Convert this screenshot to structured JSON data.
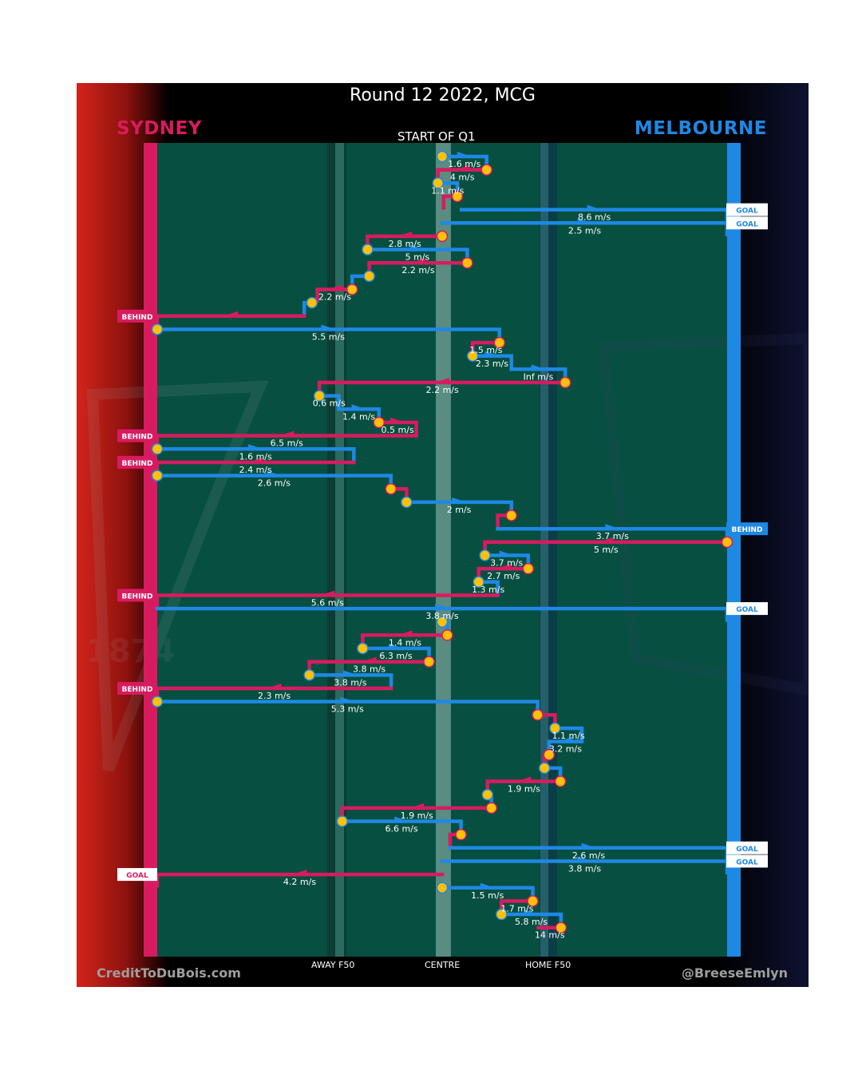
{
  "title": "Round 12 2022, MCG",
  "teams": {
    "home": "MELBOURNE",
    "away": "SYDNEY"
  },
  "period_label": "START OF Q1",
  "zones": {
    "away_f50": "AWAY F50",
    "centre": "CENTRE",
    "home_f50": "HOME F50"
  },
  "credits": {
    "left": "CreditToDuBois.com",
    "right": "@BreeseEmlyn"
  },
  "watermarks": {
    "left_year": "1874"
  },
  "colors": {
    "sydney": "#d81b60",
    "melbourne": "#1e88e5",
    "field": "#074f40",
    "marker": "#ffc107",
    "background": "#000000"
  },
  "chart_data": {
    "type": "line",
    "title": "Round 12 2022, MCG",
    "x_axis": {
      "ticks": [
        "AWAY F50",
        "CENTRE",
        "HOME F50"
      ],
      "range": [
        -100,
        100
      ],
      "note": "field position from Sydney end (left) to Melbourne end (right)"
    },
    "y_axis": {
      "direction": "time, top to bottom",
      "start": "START OF Q1"
    },
    "series": [
      {
        "name": "SYDNEY",
        "color": "#d81b60"
      },
      {
        "name": "MELBOURNE",
        "color": "#1e88e5"
      }
    ],
    "chains": [
      {
        "team": "melbourne",
        "start_x": 0,
        "end_x": 15.6,
        "label": "1.6 m/s",
        "outcome": "",
        "waypoints": [
          [
            0,
            16
          ],
          [
            15.6,
            16
          ],
          [
            15.6,
            32
          ]
        ]
      },
      {
        "team": "sydney",
        "start_x": 15.6,
        "end_x": -1.5,
        "label": "4 m/s",
        "outcome": "",
        "waypoints": [
          [
            -1.5,
            32
          ],
          [
            -1.5,
            48
          ]
        ]
      },
      {
        "team": "melbourne",
        "start_x": -1.5,
        "end_x": 5.3,
        "label": "1.1 m/s",
        "outcome": "",
        "waypoints": [
          [
            5.3,
            48
          ],
          [
            5.3,
            64
          ]
        ]
      },
      {
        "team": "sydney",
        "start_x": 5.3,
        "end_x": 0.5,
        "label": "",
        "outcome": "",
        "waypoints": [
          [
            0.5,
            64
          ],
          [
            0.5,
            82
          ],
          [
            6.8,
            82
          ],
          [
            6.8,
            98
          ]
        ]
      },
      {
        "team": "melbourne",
        "start_x": 6.8,
        "end_x": 100,
        "label": "8.6 m/s",
        "outcome": "GOAL",
        "waypoints": []
      },
      {
        "team": "melbourne",
        "start_x": 0,
        "end_x": 100,
        "label": "2.5 m/s",
        "outcome": "GOAL",
        "waypoints": []
      },
      {
        "team": "sydney",
        "start_x": 0,
        "end_x": -26.2,
        "label": "2.8 m/s",
        "outcome": "",
        "waypoints": [
          [
            -26.2,
            132
          ],
          [
            -26.2,
            148
          ]
        ]
      },
      {
        "team": "melbourne",
        "start_x": -26.2,
        "end_x": 8.8,
        "label": "5 m/s",
        "outcome": "",
        "waypoints": [
          [
            8.8,
            148
          ],
          [
            8.8,
            165
          ]
        ]
      },
      {
        "team": "sydney",
        "start_x": 8.8,
        "end_x": -25.6,
        "label": "2.2 m/s",
        "outcome": "",
        "waypoints": [
          [
            -25.6,
            165
          ],
          [
            -25.6,
            181
          ]
        ]
      },
      {
        "team": "melbourne",
        "start_x": -25.6,
        "end_x": -31.6,
        "label": "",
        "outcome": "",
        "waypoints": [
          [
            -31.6,
            181
          ],
          [
            -31.6,
            198
          ]
        ]
      },
      {
        "team": "sydney",
        "start_x": -31.6,
        "end_x": -43.8,
        "label": "2.2 m/s",
        "outcome": "",
        "waypoints": [
          [
            -43.8,
            198
          ],
          [
            -43.8,
            214
          ],
          [
            -45.7,
            214
          ],
          [
            -45.7,
            230
          ]
        ]
      },
      {
        "team": "melbourne",
        "start_x": -45.7,
        "end_x": -48.4,
        "label": "",
        "outcome": "",
        "waypoints": [
          [
            -48.4,
            230
          ],
          [
            -48.4,
            247
          ]
        ]
      },
      {
        "team": "sydney",
        "start_x": -48.4,
        "end_x": -100,
        "label": "",
        "outcome": "BEHIND",
        "waypoints": []
      },
      {
        "team": "melbourne",
        "start_x": -100,
        "end_x": 20.1,
        "label": "5.5 m/s",
        "outcome": "",
        "waypoints": [
          [
            20.1,
            264
          ],
          [
            20.1,
            281
          ]
        ]
      },
      {
        "team": "sydney",
        "start_x": 20.1,
        "end_x": 10.7,
        "label": "1.5 m/s",
        "outcome": "",
        "waypoints": [
          [
            10.7,
            281
          ],
          [
            10.7,
            297
          ]
        ]
      },
      {
        "team": "melbourne",
        "start_x": 10.7,
        "end_x": 24.3,
        "label": "2.3 m/s",
        "outcome": "",
        "waypoints": [
          [
            24.3,
            297
          ],
          [
            24.3,
            314
          ]
        ]
      },
      {
        "team": "melbourne",
        "start_x": 24.3,
        "end_x": 43.2,
        "label": "Inf m/s",
        "outcome": "",
        "waypoints": [
          [
            43.2,
            314
          ],
          [
            43.2,
            330
          ]
        ]
      },
      {
        "team": "sydney",
        "start_x": 43.2,
        "end_x": -43.1,
        "label": "2.2 m/s",
        "outcome": "",
        "waypoints": [
          [
            -43.1,
            330
          ],
          [
            -43.1,
            347
          ]
        ]
      },
      {
        "team": "melbourne",
        "start_x": -43.1,
        "end_x": -36.3,
        "label": "0.6 m/s",
        "outcome": "",
        "waypoints": [
          [
            -36.3,
            347
          ],
          [
            -36.3,
            363
          ]
        ]
      },
      {
        "team": "melbourne",
        "start_x": -36.3,
        "end_x": -22.2,
        "label": "1.4 m/s",
        "outcome": "",
        "waypoints": [
          [
            -22.2,
            363
          ],
          [
            -22.2,
            380
          ]
        ]
      },
      {
        "team": "sydney",
        "start_x": -22.2,
        "end_x": -9.1,
        "label": "0.5 m/s",
        "outcome": "",
        "waypoints": [
          [
            -9.1,
            380
          ],
          [
            -9.1,
            397
          ]
        ]
      },
      {
        "team": "sydney",
        "start_x": -9.1,
        "end_x": -100,
        "label": "6.5 m/s",
        "outcome": "BEHIND",
        "waypoints": []
      },
      {
        "team": "melbourne",
        "start_x": -100,
        "end_x": -31.0,
        "label": "1.6 m/s",
        "outcome": "",
        "waypoints": [
          [
            -31.0,
            414
          ],
          [
            -31.0,
            431
          ]
        ]
      },
      {
        "team": "sydney",
        "start_x": -31.0,
        "end_x": -100,
        "label": "2.4 m/s",
        "outcome": "BEHIND",
        "waypoints": []
      },
      {
        "team": "melbourne",
        "start_x": -100,
        "end_x": -18.0,
        "label": "2.6 m/s",
        "outcome": "",
        "waypoints": [
          [
            -18.0,
            447
          ],
          [
            -18.0,
            464
          ]
        ]
      },
      {
        "team": "sydney",
        "start_x": -18.0,
        "end_x": -12.5,
        "label": "",
        "outcome": "",
        "waypoints": [
          [
            -12.5,
            464
          ],
          [
            -12.5,
            481
          ]
        ]
      },
      {
        "team": "melbourne",
        "start_x": -12.5,
        "end_x": 24.3,
        "label": "2 m/s",
        "outcome": "",
        "waypoints": [
          [
            24.3,
            481
          ],
          [
            24.3,
            498
          ]
        ]
      },
      {
        "team": "sydney",
        "start_x": 24.3,
        "end_x": 19.5,
        "label": "",
        "outcome": "",
        "waypoints": [
          [
            19.5,
            498
          ],
          [
            19.5,
            514
          ]
        ]
      },
      {
        "team": "melbourne",
        "start_x": 19.5,
        "end_x": 100,
        "label": "3.7 m/s",
        "outcome": "BEHIND",
        "waypoints": []
      },
      {
        "team": "sydney",
        "start_x": 100,
        "end_x": 15.0,
        "label": "5 m/s",
        "outcome": "",
        "waypoints": [
          [
            15.0,
            531
          ],
          [
            15.0,
            548
          ]
        ]
      },
      {
        "team": "melbourne",
        "start_x": 15.0,
        "end_x": 30.2,
        "label": "3.7 m/s",
        "outcome": "",
        "waypoints": [
          [
            30.2,
            548
          ],
          [
            30.2,
            564
          ]
        ]
      },
      {
        "team": "sydney",
        "start_x": 30.2,
        "end_x": 12.8,
        "label": "2.7 m/s",
        "outcome": "",
        "waypoints": [
          [
            12.8,
            564
          ],
          [
            12.8,
            581
          ]
        ]
      },
      {
        "team": "melbourne",
        "start_x": 12.8,
        "end_x": 19.5,
        "label": "1.3 m/s",
        "outcome": "",
        "waypoints": [
          [
            19.5,
            581
          ],
          [
            19.5,
            598
          ]
        ]
      },
      {
        "team": "sydney",
        "start_x": 19.5,
        "end_x": -100,
        "label": "5.6 m/s",
        "outcome": "BEHIND",
        "waypoints": []
      },
      {
        "team": "melbourne",
        "start_x": -100,
        "end_x": 100,
        "label": "3.8 m/s",
        "outcome": "GOAL",
        "waypoints": []
      },
      {
        "team": "melbourne",
        "start_x": 0,
        "end_x": 1.8,
        "label": "",
        "outcome": "",
        "waypoints": [
          [
            1.8,
            625
          ],
          [
            1.8,
            632
          ]
        ]
      },
      {
        "team": "sydney",
        "start_x": 1.8,
        "end_x": -27.9,
        "label": "1.4 m/s",
        "outcome": "",
        "waypoints": [
          [
            -27.9,
            632
          ],
          [
            -27.9,
            649
          ]
        ]
      },
      {
        "team": "melbourne",
        "start_x": -27.9,
        "end_x": -4.6,
        "label": "6.3 m/s",
        "outcome": "",
        "waypoints": [
          [
            -4.6,
            649
          ],
          [
            -4.6,
            665
          ]
        ]
      },
      {
        "team": "sydney",
        "start_x": -4.6,
        "end_x": -46.6,
        "label": "3.8 m/s",
        "outcome": "",
        "waypoints": [
          [
            -46.6,
            665
          ],
          [
            -46.6,
            682
          ]
        ]
      },
      {
        "team": "melbourne",
        "start_x": -46.6,
        "end_x": -17.9,
        "label": "3.8 m/s",
        "outcome": "",
        "waypoints": [
          [
            -17.9,
            682
          ],
          [
            -17.9,
            699
          ]
        ]
      },
      {
        "team": "sydney",
        "start_x": -17.9,
        "end_x": -100,
        "label": "2.3 m/s",
        "outcome": "BEHIND",
        "waypoints": []
      },
      {
        "team": "melbourne",
        "start_x": -100,
        "end_x": 33.5,
        "label": "5.3 m/s",
        "outcome": "",
        "waypoints": [
          [
            33.5,
            716
          ],
          [
            33.5,
            732
          ]
        ]
      },
      {
        "team": "sydney",
        "start_x": 33.5,
        "end_x": 39.6,
        "label": "",
        "outcome": "",
        "waypoints": [
          [
            39.6,
            732
          ],
          [
            39.6,
            749
          ]
        ]
      },
      {
        "team": "melbourne",
        "start_x": 39.6,
        "end_x": 49.0,
        "label": "1.1 m/s",
        "outcome": "",
        "waypoints": [
          [
            49.0,
            749
          ],
          [
            49.0,
            766
          ]
        ]
      },
      {
        "team": "melbourne",
        "start_x": 49.0,
        "end_x": 37.5,
        "label": "3.2 m/s",
        "outcome": "",
        "waypoints": [
          [
            37.5,
            766
          ],
          [
            37.5,
            783
          ]
        ]
      },
      {
        "team": "sydney",
        "start_x": 37.5,
        "end_x": 35.9,
        "label": "",
        "outcome": "",
        "waypoints": [
          [
            35.9,
            783
          ],
          [
            35.9,
            799
          ]
        ]
      },
      {
        "team": "melbourne",
        "start_x": 35.9,
        "end_x": 41.5,
        "label": "",
        "outcome": "",
        "waypoints": [
          [
            41.5,
            799
          ],
          [
            41.5,
            816
          ]
        ]
      },
      {
        "team": "sydney",
        "start_x": 41.5,
        "end_x": 15.9,
        "label": "1.9 m/s",
        "outcome": "",
        "waypoints": [
          [
            15.9,
            816
          ],
          [
            15.9,
            832
          ]
        ]
      },
      {
        "team": "melbourne",
        "start_x": 15.9,
        "end_x": 17.3,
        "label": "",
        "outcome": "",
        "waypoints": [
          [
            17.3,
            832
          ],
          [
            17.3,
            849
          ]
        ]
      },
      {
        "team": "sydney",
        "start_x": 17.3,
        "end_x": -35.1,
        "label": "1.9 m/s",
        "outcome": "",
        "waypoints": [
          [
            -35.1,
            849
          ],
          [
            -35.1,
            866
          ]
        ]
      },
      {
        "team": "melbourne",
        "start_x": -35.1,
        "end_x": 6.6,
        "label": "6.6 m/s",
        "outcome": "",
        "waypoints": [
          [
            6.6,
            866
          ],
          [
            6.6,
            883
          ]
        ]
      },
      {
        "team": "sydney",
        "start_x": 6.6,
        "end_x": 2.8,
        "label": "",
        "outcome": "",
        "waypoints": [
          [
            2.8,
            883
          ],
          [
            2.8,
            900
          ]
        ]
      },
      {
        "team": "melbourne",
        "start_x": 2.8,
        "end_x": 100,
        "label": "2.6 m/s",
        "outcome": "GOAL",
        "waypoints": []
      },
      {
        "team": "melbourne",
        "start_x": 0,
        "end_x": 100,
        "label": "3.8 m/s",
        "outcome": "GOAL",
        "waypoints": []
      },
      {
        "team": "sydney",
        "start_x": 0,
        "end_x": -100,
        "label": "4.2 m/s",
        "outcome": "GOAL",
        "waypoints": []
      },
      {
        "team": "melbourne",
        "start_x": 0,
        "end_x": 31.8,
        "label": "1.5 m/s",
        "outcome": "",
        "waypoints": [
          [
            31.8,
            951
          ],
          [
            31.8,
            968
          ]
        ]
      },
      {
        "team": "sydney",
        "start_x": 31.8,
        "end_x": 20.8,
        "label": "1.7 m/s",
        "outcome": "",
        "waypoints": [
          [
            20.8,
            968
          ],
          [
            20.8,
            984
          ]
        ]
      },
      {
        "team": "melbourne",
        "start_x": 20.8,
        "end_x": 41.7,
        "label": "5.8 m/s",
        "outcome": "",
        "waypoints": [
          [
            41.7,
            984
          ],
          [
            41.7,
            1001
          ]
        ]
      },
      {
        "team": "sydney",
        "start_x": 41.7,
        "end_x": 33.8,
        "label": "14 m/s",
        "outcome": "",
        "waypoints": []
      }
    ]
  }
}
